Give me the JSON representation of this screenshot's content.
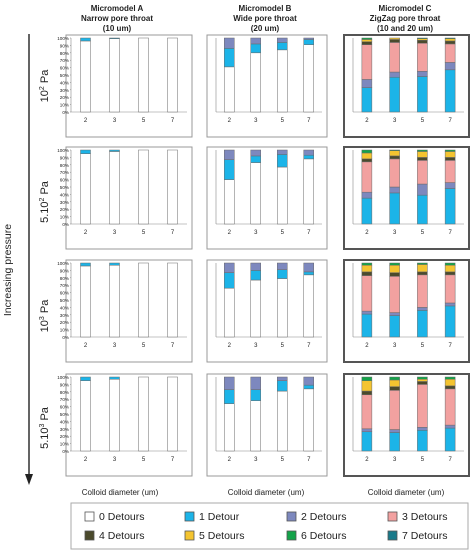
{
  "y_axis_label": "Increasing pressure",
  "x_axis_label": "Colloid diameter (um)",
  "columns": [
    {
      "title": "Micromodel A",
      "subtitle1": "Narrow pore throat",
      "subtitle2": "(10 um)"
    },
    {
      "title": "Micromodel B",
      "subtitle1": "Wide pore throat",
      "subtitle2": "(20 um)"
    },
    {
      "title": "Micromodel C",
      "subtitle1": "ZigZag pore throat",
      "subtitle2": "(10 and 20 um)"
    }
  ],
  "rows": [
    {
      "label_base": "10",
      "label_sup": "2",
      "label_unit": " Pa"
    },
    {
      "label_base": "5.10",
      "label_sup": "2",
      "label_unit": " Pa"
    },
    {
      "label_base": "10",
      "label_sup": "3",
      "label_unit": " Pa"
    },
    {
      "label_base": "5.10",
      "label_sup": "3",
      "label_unit": " Pa"
    }
  ],
  "legend": [
    {
      "name": "0 Detours",
      "color": "#ffffff"
    },
    {
      "name": "1 Detour",
      "color": "#1cb4e8"
    },
    {
      "name": "2 Detours",
      "color": "#7d88be"
    },
    {
      "name": "3 Detours",
      "color": "#f2a1a0"
    },
    {
      "name": "4 Detours",
      "color": "#4b4a2c"
    },
    {
      "name": "5 Detours",
      "color": "#f4c430"
    },
    {
      "name": "6 Detours",
      "color": "#14a34a"
    },
    {
      "name": "7 Detours",
      "color": "#1a7a8a"
    }
  ],
  "chart_data": {
    "type": "bar",
    "stacked": true,
    "percent_stacked": true,
    "categories": [
      "2",
      "3",
      "5",
      "7"
    ],
    "yticks": [
      "0%",
      "10%",
      "20%",
      "30%",
      "40%",
      "50%",
      "60%",
      "70%",
      "80%",
      "90%",
      "100%"
    ],
    "ylim": [
      0,
      100
    ],
    "series_order": [
      "0 Detours",
      "1 Detour",
      "2 Detours",
      "3 Detours",
      "4 Detours",
      "5 Detours",
      "6 Detours",
      "7 Detours"
    ],
    "panels": [
      [
        [
          [
            96,
            4,
            0,
            0,
            0,
            0,
            0,
            0
          ],
          [
            99,
            1,
            0,
            0,
            0,
            0,
            0,
            0
          ],
          [
            100,
            0,
            0,
            0,
            0,
            0,
            0,
            0
          ],
          [
            100,
            0,
            0,
            0,
            0,
            0,
            0,
            0
          ]
        ],
        [
          [
            61,
            25,
            14,
            0,
            0,
            0,
            0,
            0
          ],
          [
            80,
            12,
            8,
            0,
            0,
            0,
            0,
            0
          ],
          [
            84,
            10,
            6,
            0,
            0,
            0,
            0,
            0
          ],
          [
            91,
            7,
            2,
            0,
            0,
            0,
            0,
            0
          ]
        ],
        [
          [
            0,
            33,
            11,
            47,
            4,
            3,
            2,
            0
          ],
          [
            0,
            47,
            7,
            40,
            4,
            2,
            0,
            0
          ],
          [
            0,
            48,
            7,
            38,
            4,
            2,
            1,
            0
          ],
          [
            0,
            57,
            10,
            25,
            4,
            3,
            1,
            0
          ]
        ]
      ],
      [
        [
          [
            95,
            5,
            0,
            0,
            0,
            0,
            0,
            0
          ],
          [
            98,
            2,
            0,
            0,
            0,
            0,
            0,
            0
          ],
          [
            100,
            0,
            0,
            0,
            0,
            0,
            0,
            0
          ],
          [
            100,
            0,
            0,
            0,
            0,
            0,
            0,
            0
          ]
        ],
        [
          [
            60,
            27,
            13,
            0,
            0,
            0,
            0,
            0
          ],
          [
            83,
            9,
            8,
            0,
            0,
            0,
            0,
            0
          ],
          [
            77,
            17,
            6,
            0,
            0,
            0,
            0,
            0
          ],
          [
            88,
            5,
            7,
            0,
            0,
            0,
            0,
            0
          ]
        ],
        [
          [
            0,
            35,
            8,
            41,
            4,
            8,
            4,
            0
          ],
          [
            0,
            42,
            8,
            38,
            4,
            7,
            1,
            0
          ],
          [
            0,
            39,
            15,
            32,
            4,
            8,
            2,
            0
          ],
          [
            0,
            48,
            8,
            30,
            4,
            8,
            2,
            0
          ]
        ]
      ],
      [
        [
          [
            96,
            4,
            0,
            0,
            0,
            0,
            0,
            0
          ],
          [
            97,
            3,
            0,
            0,
            0,
            0,
            0,
            0
          ],
          [
            100,
            0,
            0,
            0,
            0,
            0,
            0,
            0
          ],
          [
            100,
            0,
            0,
            0,
            0,
            0,
            0,
            0
          ]
        ],
        [
          [
            66,
            21,
            13,
            0,
            0,
            0,
            0,
            0
          ],
          [
            77,
            13,
            10,
            0,
            0,
            0,
            0,
            0
          ],
          [
            79,
            12,
            9,
            0,
            0,
            0,
            0,
            0
          ],
          [
            84,
            4,
            12,
            0,
            0,
            0,
            0,
            0
          ]
        ],
        [
          [
            0,
            31,
            4,
            48,
            5,
            9,
            3,
            0
          ],
          [
            0,
            29,
            4,
            49,
            5,
            10,
            3,
            0
          ],
          [
            0,
            36,
            4,
            44,
            4,
            10,
            2,
            0
          ],
          [
            0,
            42,
            4,
            38,
            4,
            9,
            3,
            0
          ]
        ]
      ],
      [
        [
          [
            95,
            5,
            0,
            0,
            0,
            0,
            0,
            0
          ],
          [
            97,
            3,
            0,
            0,
            0,
            0,
            0,
            0
          ],
          [
            100,
            0,
            0,
            0,
            0,
            0,
            0,
            0
          ],
          [
            100,
            0,
            0,
            0,
            0,
            0,
            0,
            0
          ]
        ],
        [
          [
            64,
            19,
            17,
            0,
            0,
            0,
            0,
            0
          ],
          [
            68,
            15,
            17,
            0,
            0,
            0,
            0,
            0
          ],
          [
            81,
            14,
            5,
            0,
            0,
            0,
            0,
            0
          ],
          [
            84,
            5,
            11,
            0,
            0,
            0,
            0,
            0
          ]
        ],
        [
          [
            0,
            26,
            4,
            46,
            5,
            14,
            5,
            0
          ],
          [
            0,
            25,
            4,
            53,
            5,
            9,
            4,
            0
          ],
          [
            0,
            28,
            4,
            58,
            4,
            3,
            3,
            0
          ],
          [
            0,
            31,
            4,
            49,
            4,
            9,
            3,
            0
          ]
        ]
      ]
    ]
  }
}
